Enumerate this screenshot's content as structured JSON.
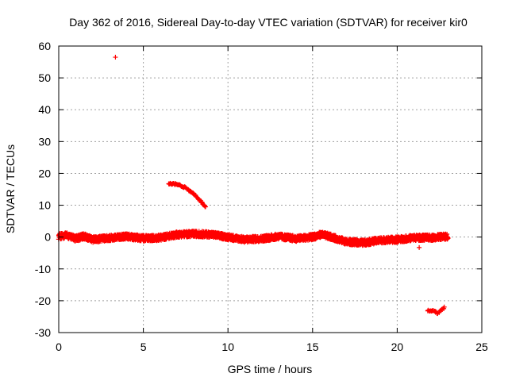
{
  "chart_data": {
    "type": "scatter",
    "title": "Day 362 of 2016, Sidereal Day-to-day VTEC variation (SDTVAR) for receiver kir0",
    "xlabel": "GPS time / hours",
    "ylabel": "SDTVAR / TECUs",
    "xlim": [
      0,
      25
    ],
    "ylim": [
      -30,
      60
    ],
    "xticks": [
      0,
      5,
      10,
      15,
      20,
      25
    ],
    "yticks": [
      -30,
      -20,
      -10,
      0,
      10,
      20,
      30,
      40,
      50,
      60
    ],
    "grid": true,
    "marker": "+",
    "series_color": "#ff0000",
    "segments": [
      {
        "name": "main-band",
        "x_start": 0.0,
        "x_end": 23.0,
        "step": 0.02,
        "profile": [
          [
            0.0,
            0.2
          ],
          [
            0.5,
            0.5
          ],
          [
            1.0,
            -0.5
          ],
          [
            1.5,
            0.3
          ],
          [
            2.0,
            -0.8
          ],
          [
            3.0,
            -0.3
          ],
          [
            4.0,
            0.2
          ],
          [
            5.0,
            -0.4
          ],
          [
            6.0,
            -0.2
          ],
          [
            7.0,
            0.8
          ],
          [
            8.0,
            1.0
          ],
          [
            9.0,
            0.8
          ],
          [
            10.0,
            0.0
          ],
          [
            11.0,
            -0.8
          ],
          [
            12.0,
            -0.5
          ],
          [
            13.0,
            0.2
          ],
          [
            14.0,
            -0.5
          ],
          [
            15.0,
            0.0
          ],
          [
            15.5,
            0.8
          ],
          [
            16.0,
            0.2
          ],
          [
            17.0,
            -1.5
          ],
          [
            18.0,
            -1.8
          ],
          [
            19.0,
            -1.0
          ],
          [
            20.0,
            -0.8
          ],
          [
            21.0,
            -0.2
          ],
          [
            22.0,
            -0.2
          ],
          [
            23.0,
            0.2
          ]
        ],
        "spread": 1.8
      },
      {
        "name": "outlier-top",
        "points": [
          [
            3.35,
            56.5
          ]
        ]
      },
      {
        "name": "arc",
        "x_start": 6.5,
        "x_end": 8.7,
        "step": 0.03,
        "profile": [
          [
            6.5,
            16.8
          ],
          [
            7.0,
            16.6
          ],
          [
            7.5,
            15.5
          ],
          [
            8.0,
            13.5
          ],
          [
            8.3,
            11.8
          ],
          [
            8.7,
            9.3
          ]
        ],
        "spread": 0.4
      },
      {
        "name": "low-cluster",
        "x_start": 21.8,
        "x_end": 22.8,
        "step": 0.04,
        "profile": [
          [
            21.8,
            -23.2
          ],
          [
            22.2,
            -23.3
          ],
          [
            22.4,
            -24.0
          ],
          [
            22.6,
            -22.8
          ],
          [
            22.8,
            -22.2
          ]
        ],
        "spread": 0.5
      },
      {
        "name": "stray-point",
        "points": [
          [
            21.3,
            -3.3
          ]
        ]
      }
    ]
  }
}
